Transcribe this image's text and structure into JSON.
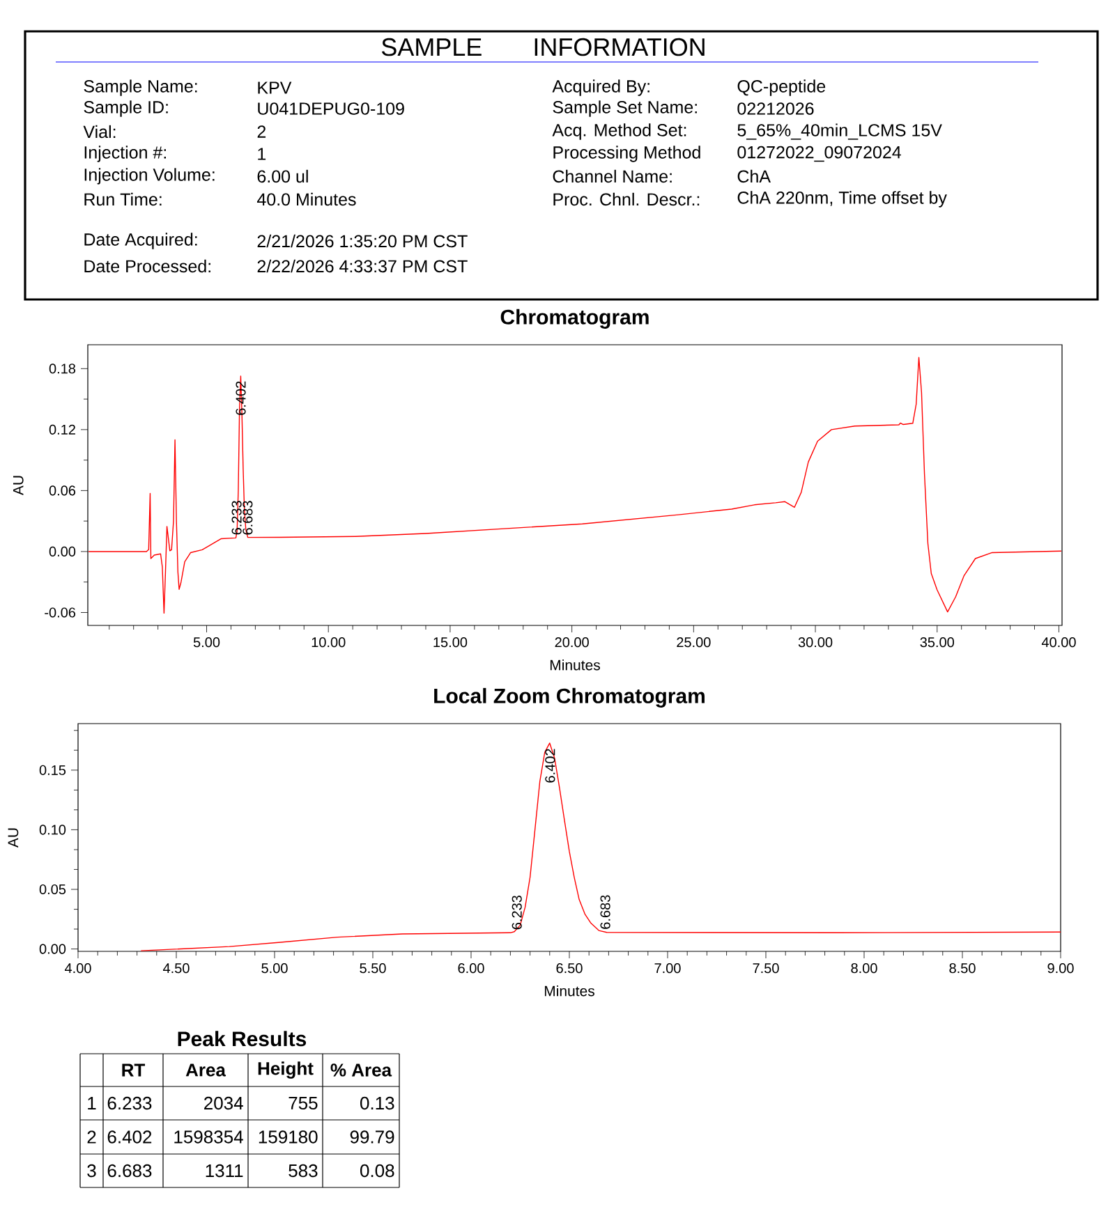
{
  "chart_data": [
    {
      "type": "other",
      "title": "SAMPLE INFORMATION",
      "annotations": [
        "Sample Name:",
        "KPV",
        "Sample ID:",
        "U041DEPUG0-109",
        "Vial:",
        "2",
        "Injection #:",
        "1",
        "Injection Volume:",
        "6.00 ul",
        "Run Time:",
        "40.0 Minutes",
        "Date Acquired:",
        "2/21/2026 1:35:20 PM CST",
        "Date Processed:",
        "2/22/2026 4:33:37 PM CST",
        "Acquired By:",
        "QC-peptide",
        "Sample Set Name:",
        "02212026",
        "Acq. Method Set:",
        "5_65%_40min_LCMS 15V",
        "Processing Method",
        "01272022_09072024",
        "Channel Name:",
        "ChA",
        "Proc. Chnl. Descr.:",
        "ChA 220nm, Time offset by"
      ]
    },
    {
      "type": "line",
      "title": "Chromatogram",
      "xlabel": "Minutes",
      "ylabel": "AU",
      "xlim": [
        0.12,
        40.13
      ],
      "ylim": [
        -0.0727,
        0.2035
      ],
      "xticks": [
        {
          "value": 5,
          "label": "5.00"
        },
        {
          "value": 10,
          "label": "10.00"
        },
        {
          "value": 15,
          "label": "15.00"
        },
        {
          "value": 20,
          "label": "20.00"
        },
        {
          "value": 25,
          "label": "25.00"
        },
        {
          "value": 30,
          "label": "30.00"
        },
        {
          "value": 35,
          "label": "35.00"
        },
        {
          "value": 40,
          "label": "40.00"
        },
        {
          "value": 1,
          "label": null
        },
        {
          "value": 2,
          "label": null
        },
        {
          "value": 3,
          "label": null
        },
        {
          "value": 4,
          "label": null
        },
        {
          "value": 6,
          "label": null
        },
        {
          "value": 7,
          "label": null
        },
        {
          "value": 8,
          "label": null
        },
        {
          "value": 9,
          "label": null
        },
        {
          "value": 11,
          "label": null
        },
        {
          "value": 12,
          "label": null
        },
        {
          "value": 13,
          "label": null
        },
        {
          "value": 14,
          "label": null
        },
        {
          "value": 16,
          "label": null
        },
        {
          "value": 17,
          "label": null
        },
        {
          "value": 18,
          "label": null
        },
        {
          "value": 19,
          "label": null
        },
        {
          "value": 21,
          "label": null
        },
        {
          "value": 22,
          "label": null
        },
        {
          "value": 23,
          "label": null
        },
        {
          "value": 24,
          "label": null
        },
        {
          "value": 26,
          "label": null
        },
        {
          "value": 27,
          "label": null
        },
        {
          "value": 28,
          "label": null
        },
        {
          "value": 29,
          "label": null
        },
        {
          "value": 31,
          "label": null
        },
        {
          "value": 32,
          "label": null
        },
        {
          "value": 33,
          "label": null
        },
        {
          "value": 34,
          "label": null
        },
        {
          "value": 36,
          "label": null
        },
        {
          "value": 37,
          "label": null
        },
        {
          "value": 38,
          "label": null
        },
        {
          "value": 39,
          "label": null
        }
      ],
      "yticks": [
        {
          "value": -0.06,
          "label": "-0.06"
        },
        {
          "value": 0,
          "label": "0.00"
        },
        {
          "value": 0.06,
          "label": "0.06"
        },
        {
          "value": 0.12,
          "label": "0.12"
        },
        {
          "value": 0.18,
          "label": "0.18"
        },
        {
          "value": -0.03,
          "label": null
        },
        {
          "value": 0.03,
          "label": null
        },
        {
          "value": 0.09,
          "label": null
        },
        {
          "value": 0.15,
          "label": null
        }
      ],
      "x": [
        0.15,
        2.53,
        2.62,
        2.68,
        2.71,
        2.85,
        3.11,
        3.18,
        3.25,
        3.31,
        3.37,
        3.49,
        3.56,
        3.64,
        3.7,
        3.76,
        3.82,
        3.87,
        3.95,
        4.1,
        4.34,
        4.82,
        5.2,
        5.59,
        6.2,
        6.25,
        6.3,
        6.35,
        6.4,
        6.45,
        6.5,
        6.55,
        6.61,
        6.69,
        8.0,
        11.12,
        14.0,
        20.43,
        24.37,
        26.56,
        27.5,
        28.37,
        28.75,
        29.14,
        29.42,
        29.71,
        30.09,
        30.66,
        31.62,
        33.43,
        33.49,
        33.61,
        34.0,
        34.14,
        34.25,
        34.36,
        34.48,
        34.62,
        34.76,
        35.0,
        35.43,
        35.76,
        36.1,
        36.57,
        37.24,
        40.1
      ],
      "series": [
        {
          "color": "#ff0000",
          "values": [
            0.0,
            0.0,
            0.002,
            0.0572,
            -0.0069,
            -0.0035,
            -0.0023,
            -0.015,
            -0.0606,
            -0.02,
            0.0247,
            0.0007,
            0.0018,
            0.03,
            0.11,
            0.03,
            -0.02,
            -0.0372,
            -0.03,
            -0.01,
            -0.0011,
            0.0018,
            0.007,
            0.0126,
            0.0134,
            0.02,
            0.06,
            0.1406,
            0.1727,
            0.135,
            0.0817,
            0.0415,
            0.0216,
            0.0139,
            0.014,
            0.0149,
            0.0178,
            0.0272,
            0.0362,
            0.0418,
            0.046,
            0.048,
            0.0491,
            0.0435,
            0.0583,
            0.0881,
            0.1086,
            0.12,
            0.1235,
            0.1247,
            0.1265,
            0.125,
            0.1262,
            0.145,
            0.191,
            0.1566,
            0.0766,
            0.008,
            -0.0217,
            -0.0377,
            -0.0594,
            -0.0446,
            -0.024,
            -0.0069,
            -0.0011,
            0.0005
          ]
        }
      ],
      "annotations": [
        {
          "text": "6.402",
          "x": 6.402,
          "y": 0.1727
        },
        {
          "text": "6.233",
          "x": 6.233,
          "y": 0.0135
        },
        {
          "text": "6.683",
          "x": 6.683,
          "y": 0.0134
        }
      ]
    },
    {
      "type": "line",
      "title": "Local Zoom Chromatogram",
      "xlabel": "Minutes",
      "ylabel": "AU",
      "xlim": [
        4.0,
        9.0
      ],
      "ylim": [
        -0.002,
        0.189
      ],
      "xticks": [
        {
          "value": 4.0,
          "label": "4.00"
        },
        {
          "value": 4.5,
          "label": "4.50"
        },
        {
          "value": 5.0,
          "label": "5.00"
        },
        {
          "value": 5.5,
          "label": "5.50"
        },
        {
          "value": 6.0,
          "label": "6.00"
        },
        {
          "value": 6.5,
          "label": "6.50"
        },
        {
          "value": 7.0,
          "label": "7.00"
        },
        {
          "value": 7.5,
          "label": "7.50"
        },
        {
          "value": 8.0,
          "label": "8.00"
        },
        {
          "value": 8.5,
          "label": "8.50"
        },
        {
          "value": 9.0,
          "label": "9.00"
        },
        {
          "value": 4.1,
          "label": null
        },
        {
          "value": 4.2,
          "label": null
        },
        {
          "value": 4.3,
          "label": null
        },
        {
          "value": 4.4,
          "label": null
        },
        {
          "value": 4.6,
          "label": null
        },
        {
          "value": 4.7,
          "label": null
        },
        {
          "value": 4.8,
          "label": null
        },
        {
          "value": 4.9,
          "label": null
        },
        {
          "value": 5.1,
          "label": null
        },
        {
          "value": 5.2,
          "label": null
        },
        {
          "value": 5.3,
          "label": null
        },
        {
          "value": 5.4,
          "label": null
        },
        {
          "value": 5.6,
          "label": null
        },
        {
          "value": 5.7,
          "label": null
        },
        {
          "value": 5.8,
          "label": null
        },
        {
          "value": 5.9,
          "label": null
        },
        {
          "value": 6.1,
          "label": null
        },
        {
          "value": 6.2,
          "label": null
        },
        {
          "value": 6.3,
          "label": null
        },
        {
          "value": 6.4,
          "label": null
        },
        {
          "value": 6.6,
          "label": null
        },
        {
          "value": 6.7,
          "label": null
        },
        {
          "value": 6.8,
          "label": null
        },
        {
          "value": 6.9,
          "label": null
        },
        {
          "value": 7.1,
          "label": null
        },
        {
          "value": 7.2,
          "label": null
        },
        {
          "value": 7.3,
          "label": null
        },
        {
          "value": 7.4,
          "label": null
        },
        {
          "value": 7.6,
          "label": null
        },
        {
          "value": 7.7,
          "label": null
        },
        {
          "value": 7.8,
          "label": null
        },
        {
          "value": 7.9,
          "label": null
        },
        {
          "value": 8.1,
          "label": null
        },
        {
          "value": 8.2,
          "label": null
        },
        {
          "value": 8.3,
          "label": null
        },
        {
          "value": 8.4,
          "label": null
        },
        {
          "value": 8.6,
          "label": null
        },
        {
          "value": 8.7,
          "label": null
        },
        {
          "value": 8.8,
          "label": null
        },
        {
          "value": 8.9,
          "label": null
        }
      ],
      "yticks": [
        {
          "value": 0,
          "label": "0.00"
        },
        {
          "value": 0.05,
          "label": "0.05"
        },
        {
          "value": 0.1,
          "label": "0.10"
        },
        {
          "value": 0.15,
          "label": "0.15"
        },
        {
          "value": 0.0167,
          "label": null
        },
        {
          "value": 0.0333,
          "label": null
        },
        {
          "value": 0.0667,
          "label": null
        },
        {
          "value": 0.0833,
          "label": null
        },
        {
          "value": 0.1167,
          "label": null
        },
        {
          "value": 0.1333,
          "label": null
        },
        {
          "value": 0.1667,
          "label": null
        },
        {
          "value": 0.1833,
          "label": null
        }
      ],
      "x": [
        4.32,
        4.77,
        5.03,
        5.32,
        5.65,
        6.2,
        6.22,
        6.25,
        6.275,
        6.3,
        6.325,
        6.35,
        6.375,
        6.4,
        6.425,
        6.45,
        6.475,
        6.5,
        6.525,
        6.55,
        6.58,
        6.61,
        6.65,
        6.69,
        7.86,
        9.0
      ],
      "series": [
        {
          "color": "#ff0000",
          "values": [
            -0.0015,
            0.002,
            0.0056,
            0.0099,
            0.0126,
            0.0136,
            0.0145,
            0.02,
            0.035,
            0.06,
            0.1,
            0.1406,
            0.165,
            0.1727,
            0.16,
            0.135,
            0.108,
            0.0817,
            0.06,
            0.0415,
            0.029,
            0.0216,
            0.0155,
            0.0139,
            0.0136,
            0.0142
          ]
        }
      ],
      "annotations": [
        {
          "text": "6.402",
          "x": 6.402,
          "y": 0.1727
        },
        {
          "text": "6.233",
          "x": 6.233,
          "y": 0.0136
        },
        {
          "text": "6.683",
          "x": 6.683,
          "y": 0.0139
        }
      ]
    },
    {
      "type": "other",
      "title": "Peak Results",
      "annotations": [
        "RT",
        "Area",
        "Height",
        "% Area",
        "1",
        "6.233",
        "2034",
        "755",
        "0.13",
        "2",
        "6.402",
        "1598354",
        "159180",
        "99.79",
        "3",
        "6.683",
        "1311",
        "583",
        "0.08"
      ]
    }
  ]
}
